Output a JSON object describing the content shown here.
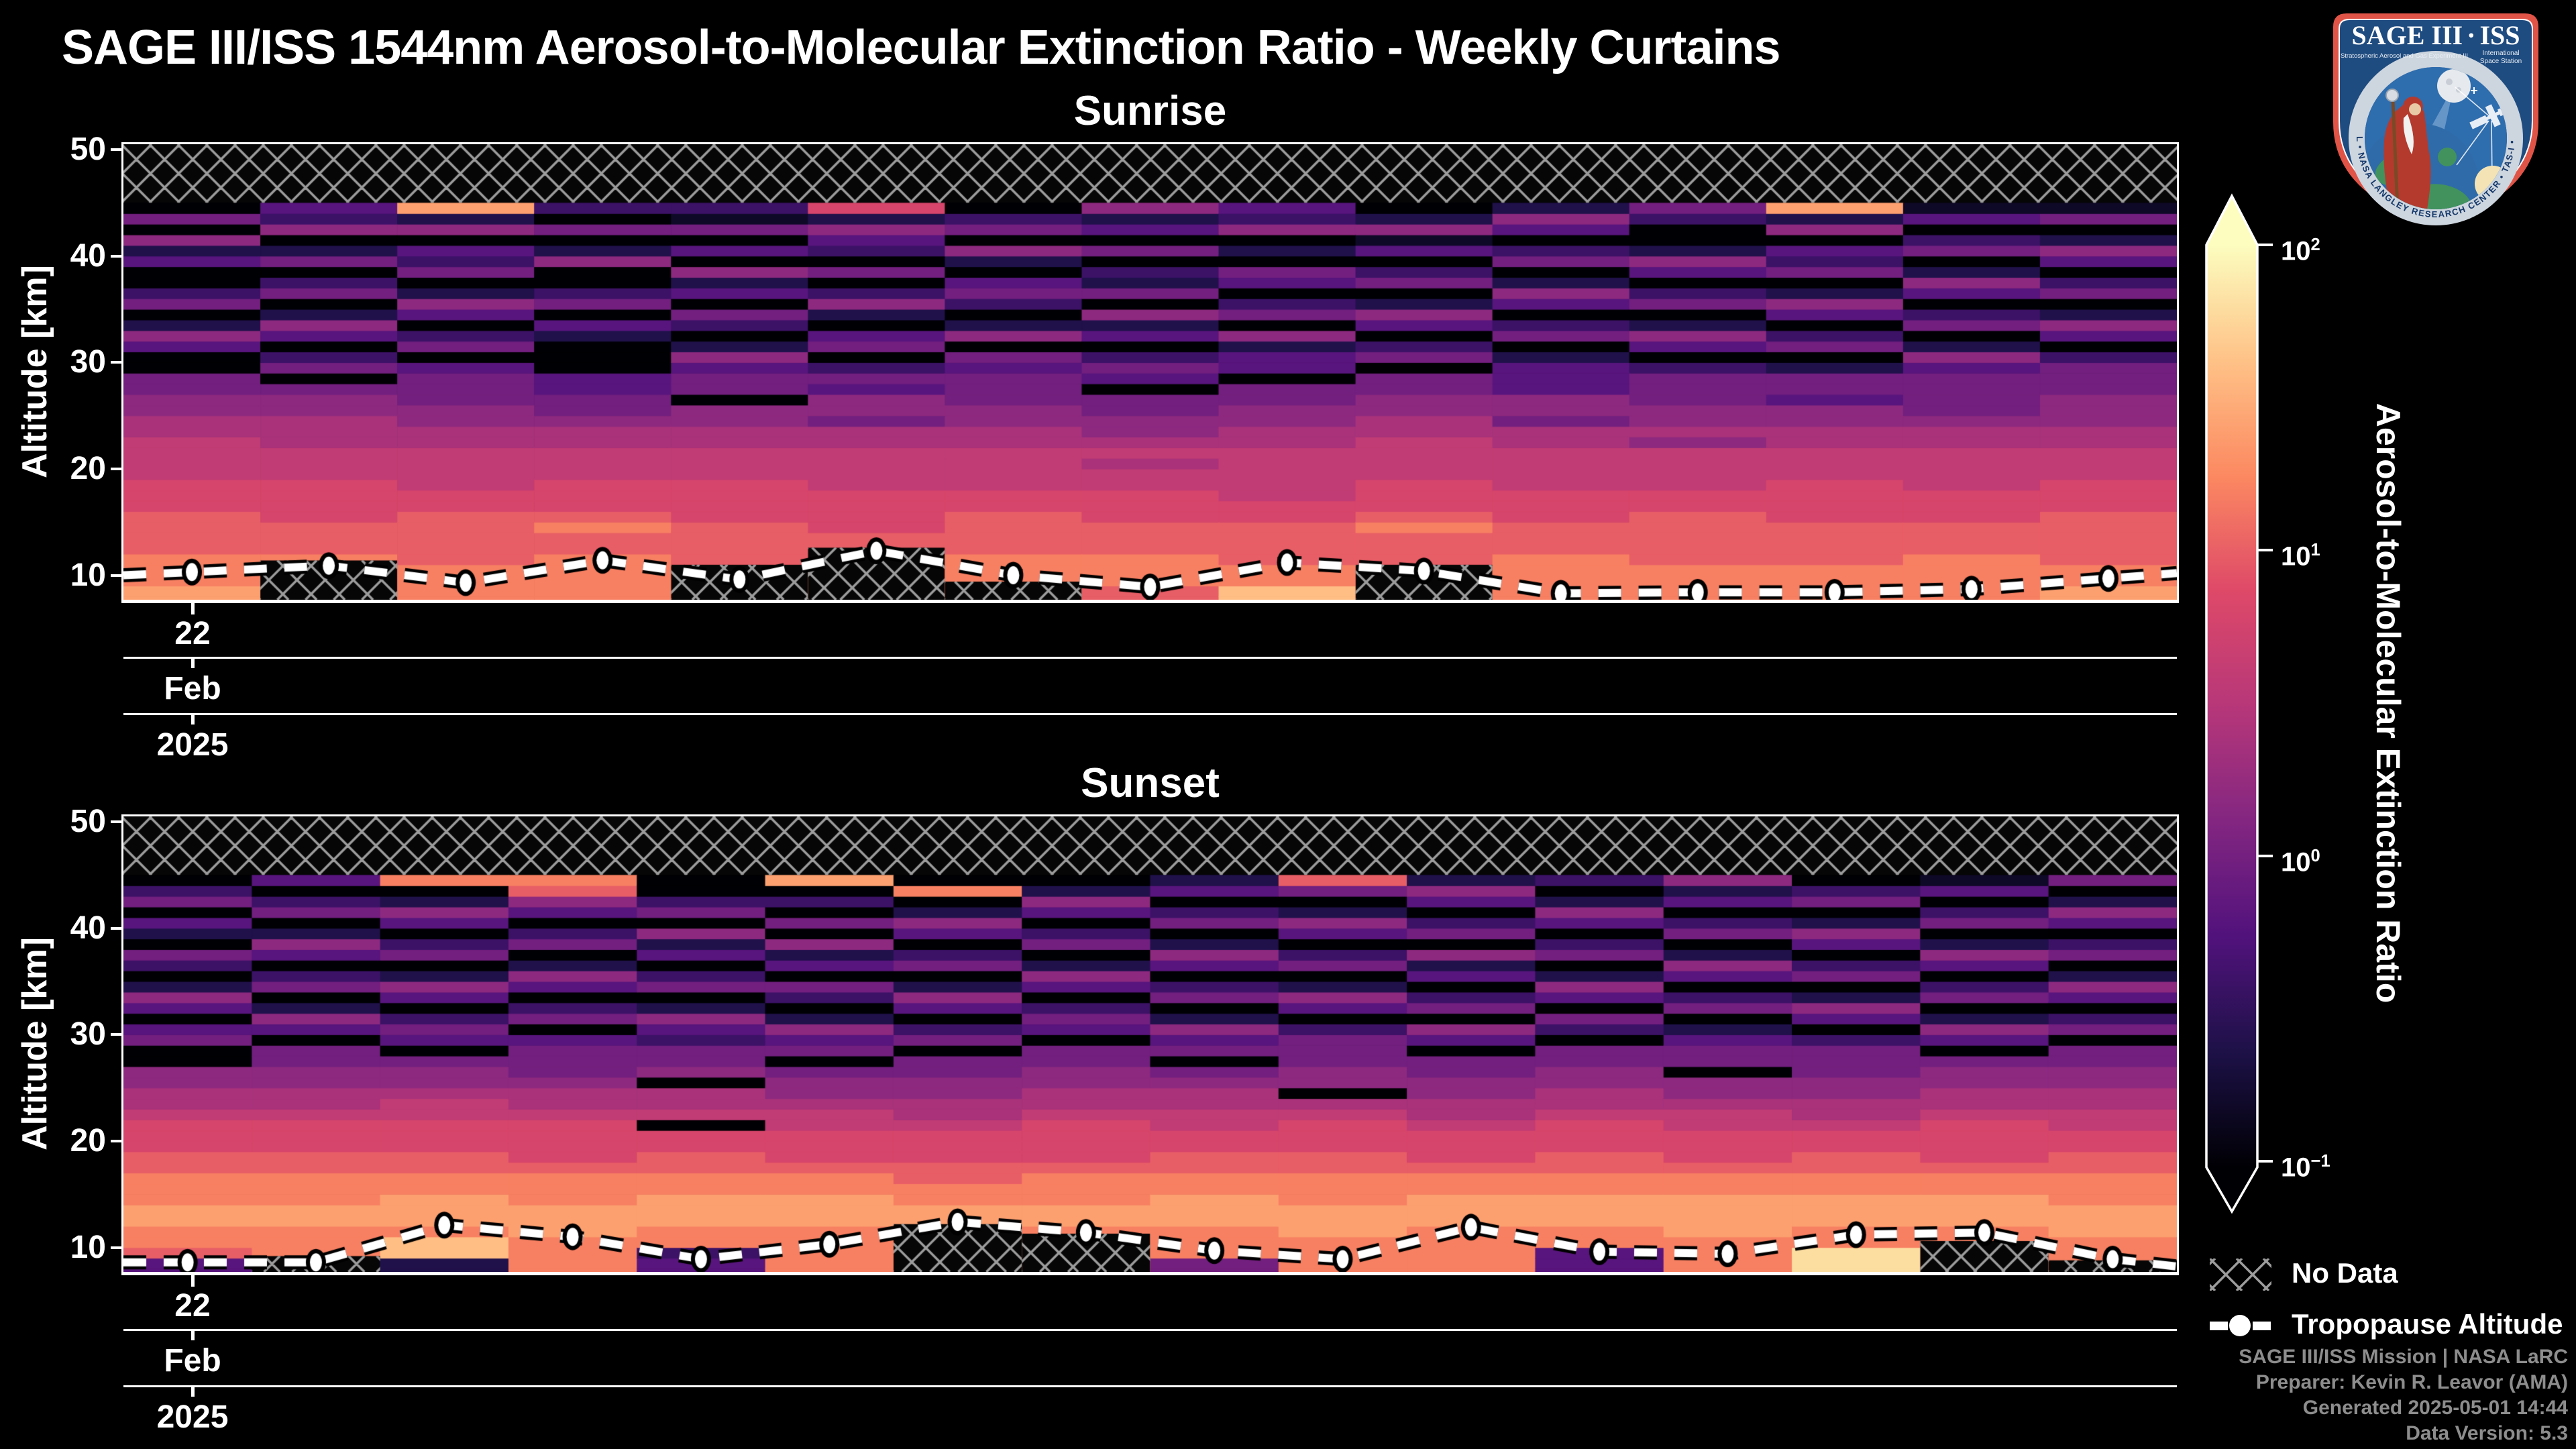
{
  "title": "SAGE III/ISS 1544nm Aerosol-to-Molecular Extinction Ratio - Weekly Curtains",
  "logo": {
    "title_left": "SAGE III",
    "dot": "·",
    "title_right": "ISS",
    "subtitle_left": "Stratospheric Aerosol and Gas Experiment III",
    "subtitle_right_1": "International",
    "subtitle_right_2": "Space Station",
    "ring_text": "BALL • NASA LANGLEY RESEARCH CENTER • TAS-I • ESA"
  },
  "axes": {
    "ylabel": "Altitude [km]",
    "yticks": [
      50,
      40,
      30,
      20,
      10
    ],
    "xtick": {
      "day": "22",
      "month": "Feb",
      "year": "2025"
    }
  },
  "colorbar": {
    "label": "Aerosol-to-Molecular Extinction Ratio",
    "ticks": [
      {
        "base": "10",
        "exp": "2"
      },
      {
        "base": "10",
        "exp": "1"
      },
      {
        "base": "10",
        "exp": "0"
      },
      {
        "base": "10",
        "exp": "−1"
      }
    ]
  },
  "legend": {
    "no_data": "No Data",
    "tropopause": "Tropopause Altitude"
  },
  "attribution": [
    "SAGE III/ISS Mission | NASA LaRC",
    "Preparer: Kevin R. Leavor (AMA)",
    "Generated 2025-05-01 14:44",
    "Data Version: 5.3"
  ],
  "chart_data": {
    "type": "heatmap",
    "title": "SAGE III/ISS 1544nm Aerosol-to-Molecular Extinction Ratio - Weekly Curtains",
    "x_axis": {
      "tick_day": "22",
      "tick_month": "Feb",
      "tick_year": "2025",
      "note": "weekly curtain columns, first week labeled 22 Feb 2025"
    },
    "y_axis": {
      "label": "Altitude [km]",
      "ticks": [
        50,
        40,
        30,
        20,
        10
      ],
      "range_km": [
        7.7,
        50.5
      ]
    },
    "color_scale": {
      "type": "log",
      "colormap": "magma",
      "range": [
        0.1,
        100
      ],
      "tick_values": [
        100,
        10,
        1,
        0.1
      ]
    },
    "no_data_above_km": 45,
    "value_encoding": "columns: one string per weekly curtain, one hex digit per 1-km bin from 8 km (first char) to 45 km (last char); extinction ratio = 10^(-1 + digit/15*3); digit 0 = at/below 0.1 (black); hatched = no data",
    "panels": [
      {
        "name": "Sunrise",
        "n_columns": 15,
        "columns": [
          "cbbbaaaa9998888776655004620530042605043",
          "bbbbaaa999988877766505304620530520634",
          "bbbaaaaa99888877665554053046205340 62c",
          "bbbbaaba99988877655440002405300620503",
          "bbbaaaa999988877660554620350426040513",
          "bbbaaa9999888877566453054026305034629",
          "bbbbaaaa99888877665554506203540260530",
          "abbbaaa999887876655045304260523050426",
          "dbbaaaa99888887766550442605304502 0634",
          "bbbaaaba99988887766550530462053041620",
          "bbbbaaa999888877566444205304620530462",
          "bbbaaaaa99888867665553046205304620035",
          "bbbaaaa9999888776645520530462053406 2c",
          "bbbbaaa999888877655554620530462053041",
          "cbbaaaaa99988877666555304620530462051"
        ],
        "tropopause_km": [
          10.3,
          10.9,
          9.3,
          11.4,
          9.6,
          12.3,
          10.0,
          8.9,
          11.2,
          10.4,
          8.3,
          8.4,
          8.4,
          8.7,
          9.7
        ],
        "no_data_patches": [
          {
            "col": 2,
            "top_km": 11.4
          },
          {
            "col": 5,
            "top_km": 11.0
          },
          {
            "col": 6,
            "top_km": 12.6
          },
          {
            "col": 7,
            "top_km": 9.4
          },
          {
            "col": 10,
            "top_km": 11.0
          }
        ]
      },
      {
        "name": "Sunset",
        "n_columns": 16,
        "columns": [
          "4abbccbbbaa99987766005404620350240530",
          "2bbbccbbbaa999877665504620530462 05304",
          "2ddbcccbbaa999887665045304620530462 0b",
          "bbbcccbbba99998776555405304620530 46ab",
          "43bbcccbbaa990877065534620530426 05300",
          "bbbbcccbba999887665054620350426 0503 0c",
          "bbbcccbbaa9998776655053046205304620b0",
          "bbbbccbbba999987766550453046205304620",
          "5bbbcccbbaa998877650546205304620 53042",
          "bbbcccbbbaa99987066555304620530 46205a",
          "bbbbcccbba99987766550460530426 0530462",
          "44bbcccbbaa999877665503504620530 46203",
          "bbbccccbba999887660554205304620530426",
          "eebbcccbbaa99877665553046205304620530",
          "bbbbcccbba99998776650462053046 2053041",
          "bbbcccbbbaa9988776655053046205304 6205"
        ],
        "tropopause_km": [
          8.6,
          8.6,
          12.1,
          11.0,
          8.9,
          10.3,
          12.4,
          11.4,
          9.7,
          8.9,
          11.9,
          9.6,
          9.4,
          11.2,
          11.4,
          8.9
        ],
        "no_data_patches": [
          {
            "col": 2,
            "top_km": 9.2
          },
          {
            "col": 7,
            "top_km": 12.2
          },
          {
            "col": 8,
            "top_km": 11.3
          },
          {
            "col": 15,
            "top_km": 10.6
          },
          {
            "col": 16,
            "top_km": 8.8
          }
        ]
      }
    ]
  }
}
